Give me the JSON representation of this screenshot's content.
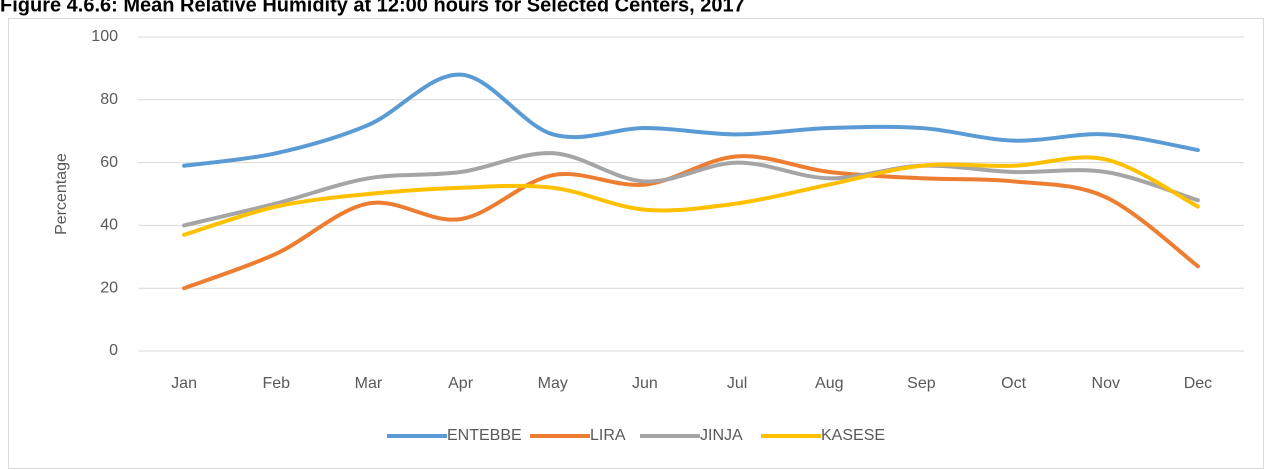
{
  "chart_data": {
    "type": "line",
    "title": "Figure 4.6.6: Mean Relative Humidity at 12:00 hours for Selected Centers, 2017",
    "y_label": "Percentage",
    "categories": [
      "Jan",
      "Feb",
      "Mar",
      "Apr",
      "May",
      "Jun",
      "Jul",
      "Aug",
      "Sep",
      "Oct",
      "Nov",
      "Dec"
    ],
    "series": [
      {
        "name": "ENTEBBE",
        "color": "#5b9bd5",
        "values": [
          59,
          63,
          72,
          88,
          69,
          71,
          69,
          71,
          71,
          67,
          69,
          64
        ]
      },
      {
        "name": "LIRA",
        "color": "#ed7d31",
        "values": [
          20,
          31,
          47,
          42,
          56,
          53,
          62,
          57,
          55,
          54,
          49,
          27
        ]
      },
      {
        "name": "JINJA",
        "color": "#a5a5a5",
        "values": [
          40,
          47,
          55,
          57,
          63,
          54,
          60,
          55,
          59,
          57,
          57,
          48
        ]
      },
      {
        "name": "KASESE",
        "color": "#ffc000",
        "values": [
          37,
          46,
          50,
          52,
          52,
          45,
          47,
          53,
          59,
          59,
          61,
          46
        ]
      }
    ],
    "ylim": [
      0,
      100
    ],
    "yticks": [
      0,
      20,
      40,
      60,
      80,
      100
    ],
    "grid": true,
    "legend": "bottom",
    "smooth": true
  }
}
